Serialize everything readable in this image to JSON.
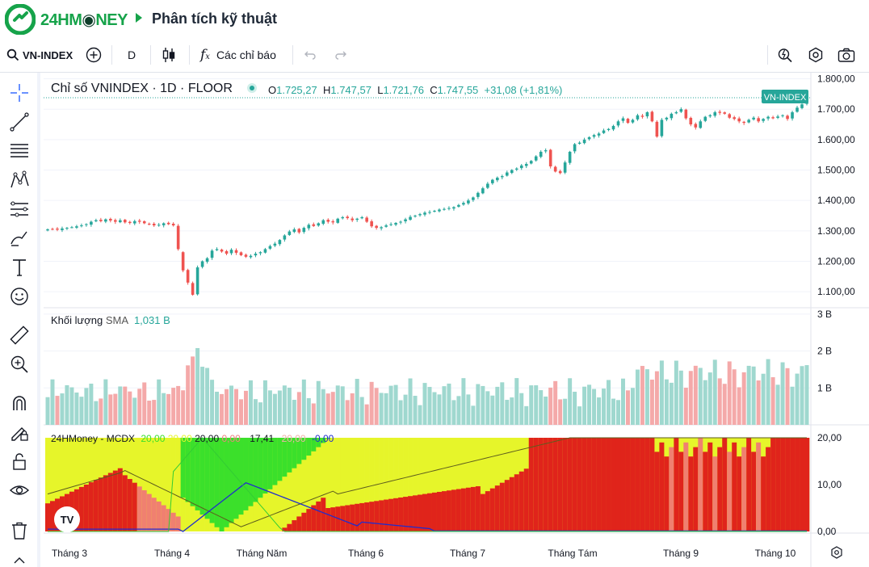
{
  "brand": {
    "name_part1": "24HM",
    "name_part2": "NEY",
    "crumb": "Phân tích kỹ thuật"
  },
  "toolbar": {
    "symbol": "VN-INDEX",
    "interval": "D",
    "indicators_label": "Các chỉ báo"
  },
  "main_legend": {
    "title": "Chỉ số VNINDEX · 1D · FLOOR",
    "o_label": "O",
    "o_val": "1.725,27",
    "h_label": "H",
    "h_val": "1.747,57",
    "l_label": "L",
    "l_val": "1.721,76",
    "c_label": "C",
    "c_val": "1.747,55",
    "change": "+31,08 (+1,81%)"
  },
  "price_tag": "VN-INDEX",
  "price_axis": [
    "1.800,00",
    "1.700,00",
    "1.600,00",
    "1.500,00",
    "1.400,00",
    "1.300,00",
    "1.200,00",
    "1.100,00"
  ],
  "volume_legend": {
    "title": "Khối lượng",
    "sma_label": "SMA",
    "sma_val": "1,031 B"
  },
  "volume_axis": [
    "3 B",
    "2 B",
    "1 B"
  ],
  "indicator_legend": {
    "name": "24HMoney - MCDX",
    "v1": "20,00",
    "v2": "20,00",
    "v3": "20,00",
    "v4": "0,00",
    "v5": "17,41",
    "v6": "20,00",
    "v7": "-0,00"
  },
  "indicator_axis": [
    "20,00",
    "10,00",
    "0,00"
  ],
  "time_axis": [
    "Tháng 3",
    "Tháng 4",
    "Tháng Năm",
    "Tháng 6",
    "Tháng 7",
    "Tháng Tám",
    "Tháng 9",
    "Tháng 10"
  ],
  "colors": {
    "up": "#26a69a",
    "down": "#ef5350",
    "brand": "#16a34a",
    "mcdx_red": "#e0241b",
    "mcdx_yellow": "#e6f52a",
    "mcdx_green": "#3be02b"
  },
  "chart_data": {
    "type": "candlestick",
    "y_range": [
      1050,
      1820
    ],
    "closes": [
      1305,
      1306,
      1304,
      1308,
      1310,
      1312,
      1315,
      1318,
      1322,
      1330,
      1335,
      1332,
      1338,
      1334,
      1330,
      1335,
      1328,
      1326,
      1332,
      1330,
      1325,
      1322,
      1318,
      1320,
      1325,
      1322,
      1318,
      1240,
      1170,
      1130,
      1090,
      1180,
      1200,
      1210,
      1235,
      1240,
      1232,
      1225,
      1238,
      1228,
      1220,
      1215,
      1218,
      1225,
      1230,
      1240,
      1250,
      1258,
      1270,
      1285,
      1298,
      1305,
      1295,
      1310,
      1320,
      1316,
      1325,
      1335,
      1330,
      1328,
      1340,
      1345,
      1342,
      1335,
      1340,
      1345,
      1330,
      1315,
      1310,
      1312,
      1318,
      1322,
      1326,
      1330,
      1338,
      1346,
      1350,
      1355,
      1360,
      1362,
      1366,
      1370,
      1372,
      1375,
      1378,
      1385,
      1392,
      1400,
      1410,
      1425,
      1440,
      1455,
      1468,
      1475,
      1480,
      1492,
      1500,
      1505,
      1515,
      1520,
      1530,
      1545,
      1560,
      1565,
      1512,
      1495,
      1490,
      1525,
      1560,
      1585,
      1590,
      1600,
      1608,
      1615,
      1620,
      1630,
      1635,
      1645,
      1660,
      1670,
      1655,
      1665,
      1680,
      1675,
      1690,
      1660,
      1610,
      1665,
      1672,
      1685,
      1690,
      1700,
      1670,
      1650,
      1640,
      1660,
      1675,
      1680,
      1690,
      1688,
      1685,
      1672,
      1668,
      1660,
      1655,
      1665,
      1672,
      1660,
      1668,
      1675,
      1670,
      1676,
      1680,
      1668,
      1690,
      1705,
      1716,
      1747
    ]
  }
}
